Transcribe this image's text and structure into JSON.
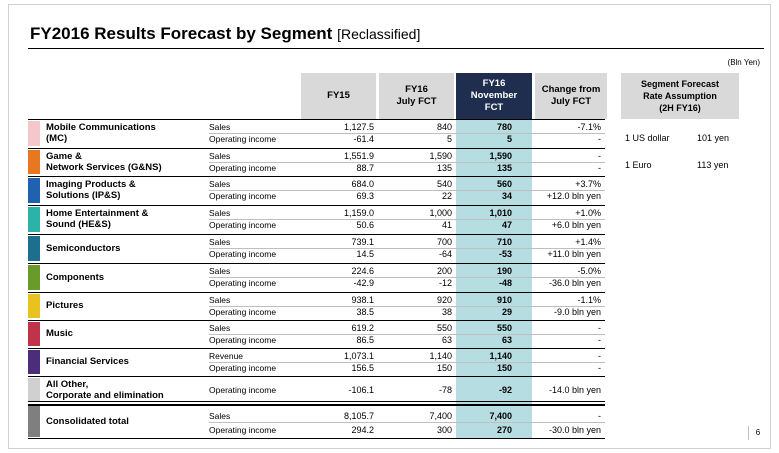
{
  "title": "FY2016  Results Forecast by Segment",
  "title_suffix": "[Reclassified]",
  "unit": "(Bln Yen)",
  "columns": {
    "fy15": "FY15",
    "fy16_july": "FY16\nJuly FCT",
    "fy16_nov": "FY16\nNovember\nFCT",
    "change": "Change from\nJuly FCT"
  },
  "rate_box": {
    "header": "Segment Forecast\nRate Assumption\n(2H FY16)",
    "rows": [
      {
        "currency": "1 US dollar",
        "rate": "101 yen"
      },
      {
        "currency": "1 Euro",
        "rate": "113 yen"
      }
    ]
  },
  "segments": [
    {
      "name": "Mobile Communications\n(MC)",
      "color": "#f4c7cd",
      "rows": [
        {
          "label": "Sales",
          "fy15": "1,127.5",
          "july": "840",
          "nov": "780",
          "change": "-7.1%"
        },
        {
          "label": "Operating income",
          "fy15": "-61.4",
          "july": "5",
          "nov": "5",
          "change": "-"
        }
      ]
    },
    {
      "name": "Game &\nNetwork Services (G&NS)",
      "color": "#e87722",
      "rows": [
        {
          "label": "Sales",
          "fy15": "1,551.9",
          "july": "1,590",
          "nov": "1,590",
          "change": "-"
        },
        {
          "label": "Operating income",
          "fy15": "88.7",
          "july": "135",
          "nov": "135",
          "change": "-"
        }
      ]
    },
    {
      "name": "Imaging Products &\nSolutions (IP&S)",
      "color": "#1f63b0",
      "rows": [
        {
          "label": "Sales",
          "fy15": "684.0",
          "july": "540",
          "nov": "560",
          "change": "+3.7%"
        },
        {
          "label": "Operating income",
          "fy15": "69.3",
          "july": "22",
          "nov": "34",
          "change": "+12.0 bln yen"
        }
      ]
    },
    {
      "name": "Home Entertainment &\nSound (HE&S)",
      "color": "#2bb3a8",
      "rows": [
        {
          "label": "Sales",
          "fy15": "1,159.0",
          "july": "1,000",
          "nov": "1,010",
          "change": "+1.0%"
        },
        {
          "label": "Operating income",
          "fy15": "50.6",
          "july": "41",
          "nov": "47",
          "change": "+6.0 bln yen"
        }
      ]
    },
    {
      "name": "Semiconductors",
      "color": "#1d6f8e",
      "rows": [
        {
          "label": "Sales",
          "fy15": "739.1",
          "july": "700",
          "nov": "710",
          "change": "+1.4%"
        },
        {
          "label": "Operating income",
          "fy15": "14.5",
          "july": "-64",
          "nov": "-53",
          "change": "+11.0 bln yen"
        }
      ]
    },
    {
      "name": "Components",
      "color": "#6a9a2a",
      "rows": [
        {
          "label": "Sales",
          "fy15": "224.6",
          "july": "200",
          "nov": "190",
          "change": "-5.0%"
        },
        {
          "label": "Operating income",
          "fy15": "-42.9",
          "july": "-12",
          "nov": "-48",
          "change": "-36.0 bln yen"
        }
      ]
    },
    {
      "name": "Pictures",
      "color": "#e8c21e",
      "rows": [
        {
          "label": "Sales",
          "fy15": "938.1",
          "july": "920",
          "nov": "910",
          "change": "-1.1%"
        },
        {
          "label": "Operating income",
          "fy15": "38.5",
          "july": "38",
          "nov": "29",
          "change": "-9.0 bln yen"
        }
      ]
    },
    {
      "name": "Music",
      "color": "#c0334b",
      "rows": [
        {
          "label": "Sales",
          "fy15": "619.2",
          "july": "550",
          "nov": "550",
          "change": "-"
        },
        {
          "label": "Operating income",
          "fy15": "86.5",
          "july": "63",
          "nov": "63",
          "change": "-"
        }
      ]
    },
    {
      "name": "Financial Services",
      "color": "#4b2e7a",
      "rows": [
        {
          "label": "Revenue",
          "fy15": "1,073.1",
          "july": "1,140",
          "nov": "1,140",
          "change": "-"
        },
        {
          "label": "Operating income",
          "fy15": "156.5",
          "july": "150",
          "nov": "150",
          "change": "-"
        }
      ]
    },
    {
      "name": "All Other,\nCorporate and elimination",
      "color": "#d0d0d0",
      "rows": [
        {
          "label": "Operating income",
          "fy15": "-106.1",
          "july": "-78",
          "nov": "-92",
          "change": "-14.0 bln yen"
        }
      ]
    },
    {
      "name": "Consolidated total",
      "color": "#7f7f7f",
      "rows": [
        {
          "label": "Sales",
          "fy15": "8,105.7",
          "july": "7,400",
          "nov": "7,400",
          "change": "-"
        },
        {
          "label": "Operating income",
          "fy15": "294.2",
          "july": "300",
          "nov": "270",
          "change": "-30.0 bln yen"
        }
      ]
    }
  ],
  "page_number": "6"
}
